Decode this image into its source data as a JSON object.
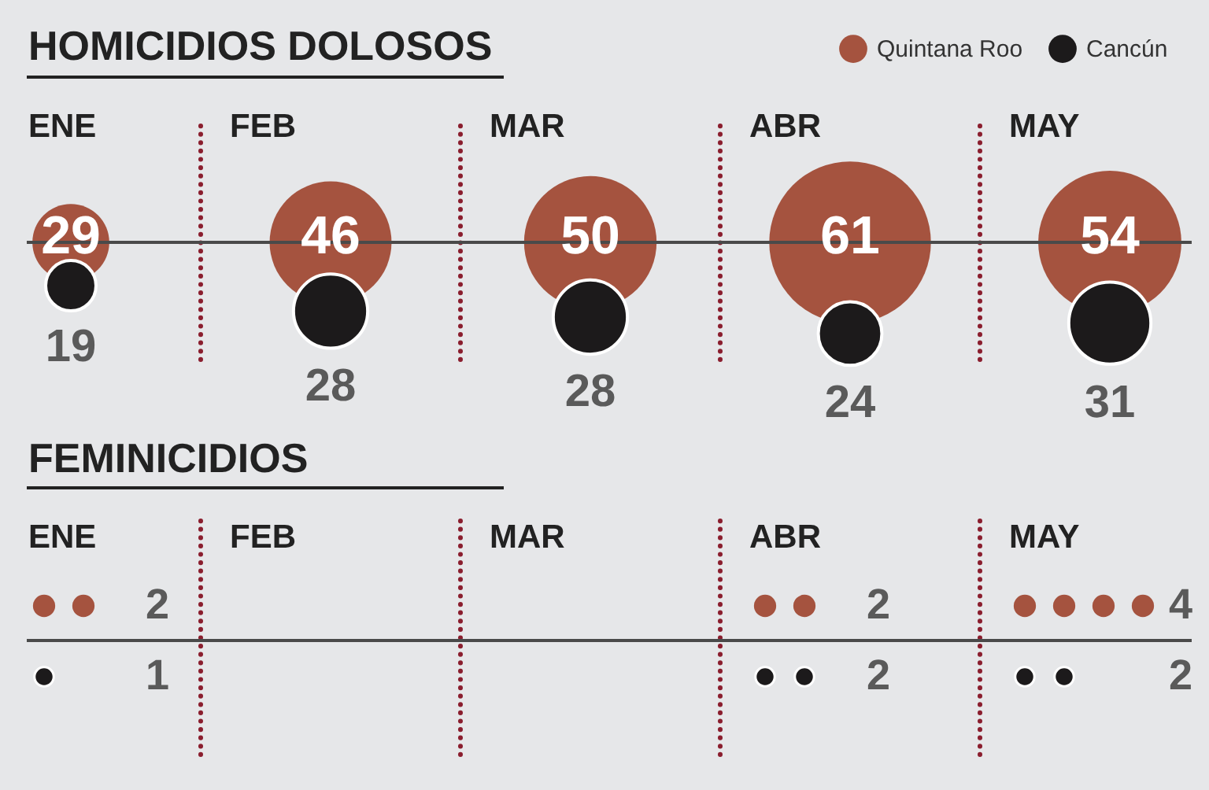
{
  "chart_data": [
    {
      "type": "other",
      "title": "HOMICIDIOS DOLOSOS",
      "categories": [
        "ENE",
        "FEB",
        "MAR",
        "ABR",
        "MAY"
      ],
      "series": [
        {
          "name": "Quintana Roo",
          "color": "#a5533f",
          "values": [
            29,
            46,
            50,
            61,
            54
          ]
        },
        {
          "name": "Cancún",
          "color": "#1c1a1b",
          "values": [
            19,
            28,
            28,
            24,
            31
          ]
        }
      ],
      "data_labels": true,
      "legend": "top right"
    },
    {
      "type": "other",
      "title": "FEMINICIDIOS",
      "categories": [
        "ENE",
        "FEB",
        "MAR",
        "ABR",
        "MAY"
      ],
      "series": [
        {
          "color": "#a5533f",
          "values": [
            2,
            null,
            null,
            2,
            4
          ]
        },
        {
          "color": "#1c1a1b",
          "values": [
            1,
            null,
            null,
            2,
            2
          ]
        }
      ],
      "data_labels": true
    }
  ]
}
